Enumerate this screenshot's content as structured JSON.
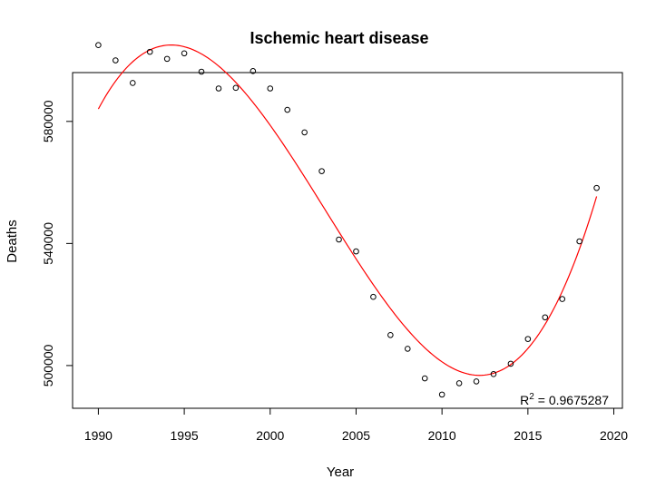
{
  "chart_data": {
    "type": "scatter",
    "title": "Ischemic heart disease",
    "xlabel": "Year",
    "ylabel": "Deaths",
    "xlim": [
      1988.5,
      2020.5
    ],
    "ylim": [
      486000,
      596000
    ],
    "xticks": [
      1990,
      1995,
      2000,
      2005,
      2010,
      2015,
      2020
    ],
    "yticks": [
      500000,
      540000,
      580000
    ],
    "grid": false,
    "series": [
      {
        "type": "points",
        "x": [
          1990,
          1991,
          1992,
          1993,
          1994,
          1995,
          1996,
          1997,
          1998,
          1999,
          2000,
          2001,
          2002,
          2003,
          2004,
          2005,
          2006,
          2007,
          2008,
          2009,
          2010,
          2011,
          2012,
          2013,
          2014,
          2015,
          2016,
          2017,
          2018,
          2019
        ],
        "y": [
          605000,
          600000,
          592600,
          602800,
          600500,
          602300,
          596300,
          590800,
          591000,
          596500,
          590800,
          583800,
          576400,
          563700,
          541300,
          537400,
          522500,
          510000,
          505500,
          495800,
          490500,
          494200,
          494800,
          497200,
          500600,
          508700,
          515800,
          521800,
          540700,
          558200
        ],
        "color": "#000000"
      },
      {
        "type": "fit",
        "model": "cubic",
        "x_from": 1990,
        "x_to": 2019,
        "fit_points": [
          [
            1990,
            587000
          ],
          [
            1994,
            598800
          ],
          [
            2000,
            581000
          ],
          [
            2005,
            539000
          ],
          [
            2010,
            500000
          ],
          [
            2012,
            495000
          ],
          [
            2015,
            504000
          ],
          [
            2019,
            557000
          ]
        ],
        "color": "#ff0000"
      }
    ],
    "annotation": {
      "prefix": "R",
      "sup": "2",
      "suffix": " = 0.9675287"
    }
  }
}
